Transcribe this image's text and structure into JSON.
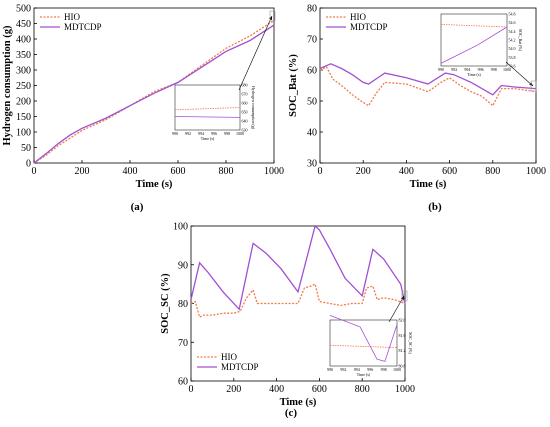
{
  "colors": {
    "hio": "#f07a4a",
    "mdtcdp": "#a24fd4"
  },
  "chart_data": [
    {
      "type": "line",
      "panel_label": "(a)",
      "xlabel": "Time (s)",
      "ylabel": "Hydrogen consumption (g)",
      "xlim": [
        0,
        1000
      ],
      "ylim": [
        0,
        500
      ],
      "xticks": [
        0,
        200,
        400,
        600,
        800,
        1000
      ],
      "yticks": [
        0,
        50,
        100,
        150,
        200,
        250,
        300,
        350,
        400,
        450,
        500
      ],
      "xtick_labels": [
        "0",
        "200",
        "400",
        "600",
        "800",
        "1000"
      ],
      "ytick_labels": [
        "0",
        "50",
        "100",
        "150",
        "200",
        "250",
        "300",
        "350",
        "400",
        "450",
        "500"
      ],
      "legend_position": "top-left",
      "series": [
        {
          "name": "HIO",
          "style": "dotted",
          "color": "#f07a4a",
          "x": [
            0,
            50,
            100,
            150,
            200,
            300,
            400,
            500,
            600,
            700,
            800,
            900,
            1000
          ],
          "y": [
            0,
            25,
            55,
            80,
            105,
            140,
            185,
            230,
            260,
            315,
            370,
            410,
            460
          ]
        },
        {
          "name": "MDTCDP",
          "style": "solid",
          "color": "#a24fd4",
          "x": [
            0,
            50,
            100,
            150,
            200,
            300,
            400,
            500,
            600,
            700,
            800,
            900,
            1000
          ],
          "y": [
            0,
            30,
            62,
            90,
            112,
            145,
            185,
            225,
            260,
            310,
            360,
            395,
            445
          ]
        }
      ],
      "inset": {
        "xlabel": "Time (s)",
        "ylabel": "Hydrogen consumption (g)",
        "xtick_labels": [
          "990",
          "992",
          "994",
          "996",
          "998",
          "1000"
        ],
        "ytick_labels": [
          "630",
          "640",
          "650",
          "660",
          "670",
          "680"
        ]
      }
    },
    {
      "type": "line",
      "panel_label": "(b)",
      "xlabel": "Time (s)",
      "ylabel": "SOC_Bat (%)",
      "xlim": [
        0,
        1000
      ],
      "ylim": [
        30,
        80
      ],
      "xticks": [
        0,
        200,
        400,
        600,
        800,
        1000
      ],
      "yticks": [
        30,
        40,
        50,
        60,
        70,
        80
      ],
      "xtick_labels": [
        "0",
        "200",
        "400",
        "600",
        "800",
        "1000"
      ],
      "ytick_labels": [
        "30",
        "40",
        "50",
        "60",
        "70",
        "80"
      ],
      "legend_position": "top-left",
      "series": [
        {
          "name": "HIO",
          "style": "dotted",
          "color": "#f07a4a",
          "x": [
            0,
            30,
            60,
            100,
            150,
            200,
            225,
            260,
            300,
            400,
            500,
            560,
            600,
            650,
            700,
            750,
            800,
            840,
            900,
            1000
          ],
          "y": [
            60,
            61,
            57,
            55,
            52,
            49.5,
            48.5,
            52.5,
            56,
            55.5,
            53,
            56,
            57.5,
            55,
            53,
            51.5,
            48.5,
            54,
            54,
            53
          ]
        },
        {
          "name": "MDTCDP",
          "style": "solid",
          "color": "#a24fd4",
          "x": [
            0,
            50,
            100,
            150,
            200,
            225,
            300,
            400,
            500,
            580,
            620,
            700,
            800,
            840,
            900,
            1000
          ],
          "y": [
            60.5,
            62,
            60.5,
            58.5,
            56,
            55.5,
            59,
            57.5,
            55.5,
            59,
            58.5,
            56,
            52,
            55,
            54.5,
            54
          ]
        }
      ],
      "inset": {
        "xlabel": "Time (s)",
        "ylabel": "SOC_Bat (%)",
        "xtick_labels": [
          "990",
          "992",
          "994",
          "996",
          "998",
          "1000"
        ],
        "ytick_labels": [
          "53.6",
          "53.8",
          "54.0",
          "54.2",
          "54.4",
          "54.6",
          "54.8"
        ]
      }
    },
    {
      "type": "line",
      "panel_label": "(c)",
      "xlabel": "Time (s)",
      "ylabel": "SOC_SC (%)",
      "xlim": [
        0,
        1000
      ],
      "ylim": [
        60,
        100
      ],
      "xticks": [
        0,
        200,
        400,
        600,
        800,
        1000
      ],
      "yticks": [
        60,
        70,
        80,
        90,
        100
      ],
      "xtick_labels": [
        "0",
        "200",
        "400",
        "600",
        "800",
        "1000"
      ],
      "ytick_labels": [
        "60",
        "70",
        "80",
        "90",
        "100"
      ],
      "legend_position": "bottom-left",
      "series": [
        {
          "name": "HIO",
          "style": "dotted",
          "color": "#f07a4a",
          "x": [
            0,
            20,
            40,
            60,
            100,
            150,
            200,
            230,
            260,
            290,
            310,
            350,
            400,
            450,
            500,
            530,
            560,
            580,
            600,
            650,
            700,
            750,
            800,
            820,
            850,
            870,
            900,
            950,
            1000
          ],
          "y": [
            80,
            80.5,
            76.5,
            77,
            77,
            77.5,
            77.5,
            78,
            81.5,
            83.5,
            80,
            80,
            80,
            80,
            80,
            84,
            84.5,
            85,
            80.5,
            80,
            79.5,
            80,
            80,
            84,
            84.5,
            81,
            81.5,
            81,
            80
          ]
        },
        {
          "name": "MDTCDP",
          "style": "solid",
          "color": "#a24fd4",
          "x": [
            0,
            40,
            80,
            150,
            225,
            290,
            350,
            420,
            500,
            580,
            600,
            650,
            720,
            800,
            850,
            900,
            980,
            1000
          ],
          "y": [
            81,
            90.5,
            88,
            83,
            78.5,
            95.5,
            93,
            89,
            83,
            100,
            99,
            94,
            86.5,
            82,
            94,
            91.5,
            85,
            80
          ]
        }
      ],
      "inset": {
        "xlabel": "Time (s)",
        "ylabel": "SOC_SC (%)",
        "xtick_labels": [
          "990",
          "992",
          "994",
          "996",
          "998",
          "1000"
        ],
        "ytick_labels": [
          "80.8",
          "81.2",
          "81.6",
          "82.0"
        ]
      }
    }
  ]
}
